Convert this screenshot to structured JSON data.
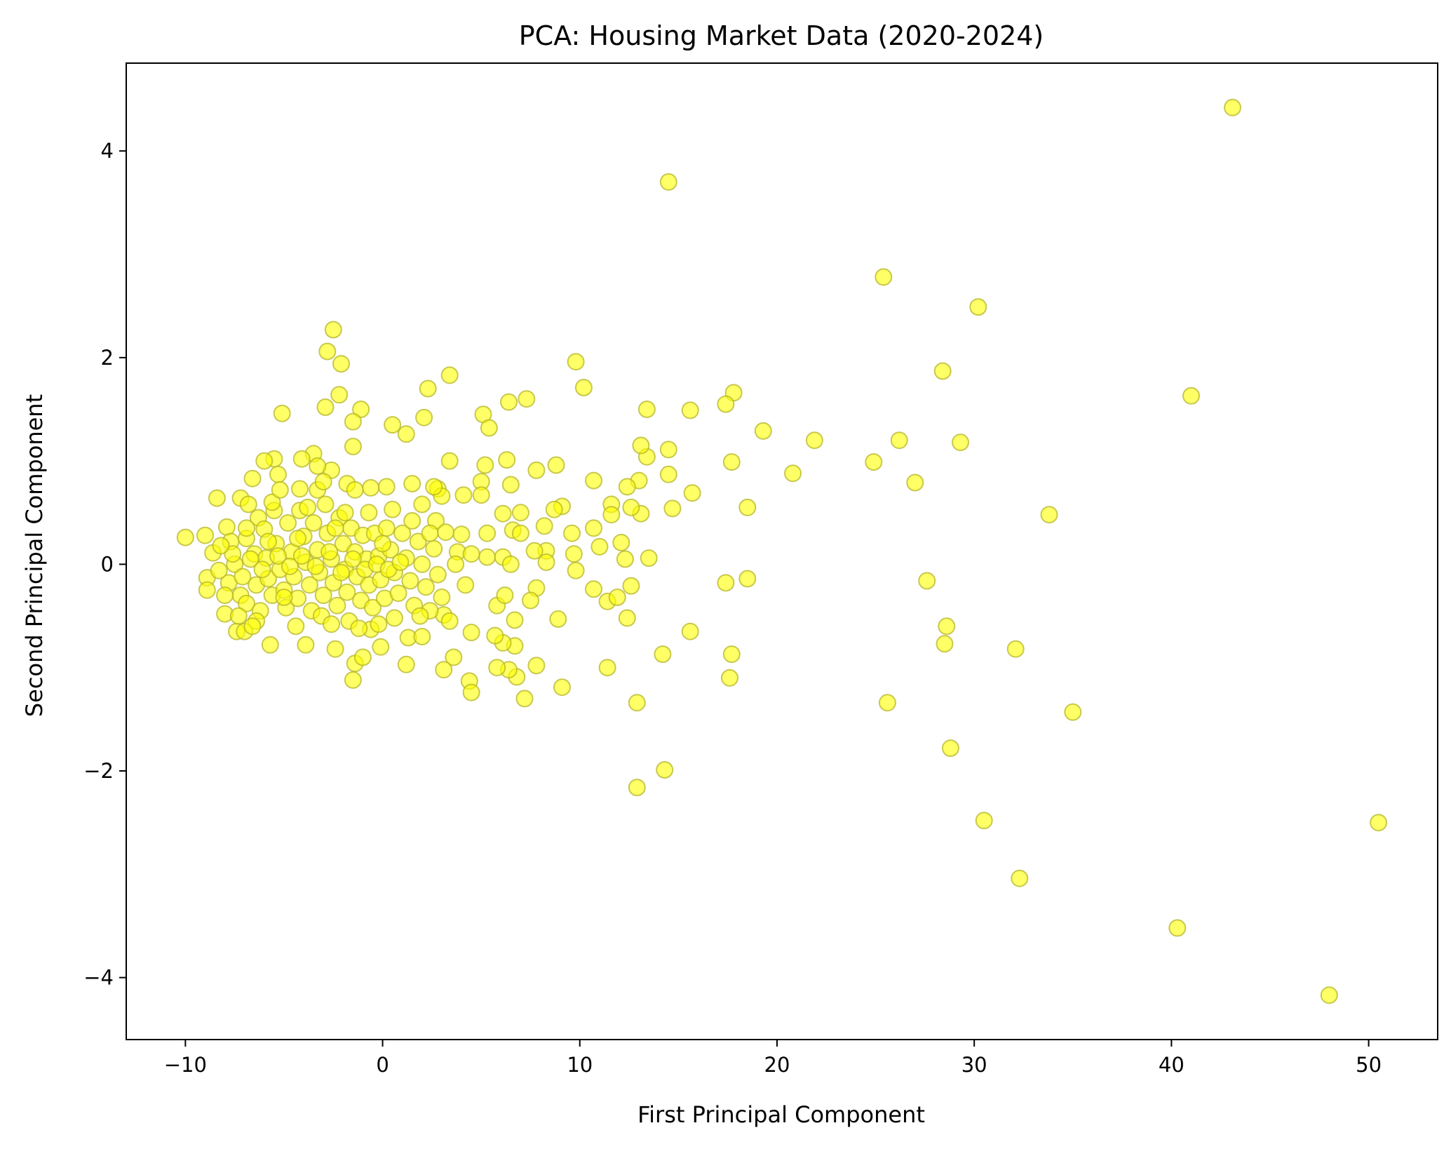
{
  "chart_data": {
    "type": "scatter",
    "title": "PCA: Housing Market Data (2020-2024)",
    "xlabel": "First Principal Component",
    "ylabel": "Second Principal Component",
    "xlim": [
      -13,
      53.5
    ],
    "ylim": [
      -4.6,
      4.85
    ],
    "xticks": [
      -10,
      0,
      10,
      20,
      30,
      40,
      50
    ],
    "xtick_labels": [
      "−10",
      "0",
      "10",
      "20",
      "30",
      "40",
      "50"
    ],
    "yticks": [
      -4,
      -2,
      0,
      2,
      4
    ],
    "ytick_labels": [
      "−4",
      "−2",
      "0",
      "2",
      "4"
    ],
    "grid": false,
    "legend": "none",
    "series": [
      {
        "marker_color": "#ffff00",
        "marker_edge_color": "#b5b52a",
        "opacity": 0.6,
        "points": [
          [
            43.1,
            4.42
          ],
          [
            14.5,
            3.7
          ],
          [
            25.4,
            2.78
          ],
          [
            30.2,
            2.49
          ],
          [
            41.0,
            1.63
          ],
          [
            28.4,
            1.87
          ],
          [
            29.3,
            1.18
          ],
          [
            26.2,
            1.2
          ],
          [
            24.9,
            0.99
          ],
          [
            27.0,
            0.79
          ],
          [
            33.8,
            0.48
          ],
          [
            27.6,
            -0.16
          ],
          [
            28.6,
            -0.6
          ],
          [
            28.5,
            -0.77
          ],
          [
            32.1,
            -0.82
          ],
          [
            25.6,
            -1.34
          ],
          [
            35.0,
            -1.43
          ],
          [
            28.8,
            -1.78
          ],
          [
            30.5,
            -2.48
          ],
          [
            50.5,
            -2.5
          ],
          [
            32.3,
            -3.04
          ],
          [
            40.3,
            -3.52
          ],
          [
            48.0,
            -4.17
          ],
          [
            21.9,
            1.2
          ],
          [
            19.3,
            1.29
          ],
          [
            20.8,
            0.88
          ],
          [
            17.8,
            1.66
          ],
          [
            17.4,
            1.55
          ],
          [
            17.7,
            0.99
          ],
          [
            18.5,
            0.55
          ],
          [
            18.5,
            -0.14
          ],
          [
            17.4,
            -0.18
          ],
          [
            17.7,
            -0.87
          ],
          [
            17.6,
            -1.1
          ],
          [
            15.6,
            1.49
          ],
          [
            15.7,
            0.69
          ],
          [
            14.7,
            0.54
          ],
          [
            14.5,
            0.87
          ],
          [
            14.5,
            1.11
          ],
          [
            15.6,
            -0.65
          ],
          [
            14.2,
            -0.87
          ],
          [
            14.3,
            -1.99
          ],
          [
            13.4,
            1.5
          ],
          [
            13.4,
            1.04
          ],
          [
            13.1,
            1.15
          ],
          [
            13.0,
            0.81
          ],
          [
            13.1,
            0.49
          ],
          [
            12.6,
            0.55
          ],
          [
            12.4,
            0.75
          ],
          [
            13.5,
            0.06
          ],
          [
            12.3,
            0.05
          ],
          [
            12.6,
            -0.21
          ],
          [
            12.4,
            -0.52
          ],
          [
            12.9,
            -1.34
          ],
          [
            12.9,
            -2.16
          ],
          [
            9.8,
            1.96
          ],
          [
            10.2,
            1.71
          ],
          [
            11.6,
            0.58
          ],
          [
            11.6,
            0.48
          ],
          [
            10.7,
            0.81
          ],
          [
            10.7,
            0.35
          ],
          [
            11.0,
            0.17
          ],
          [
            12.1,
            0.21
          ],
          [
            9.7,
            0.1
          ],
          [
            9.8,
            -0.06
          ],
          [
            10.7,
            -0.24
          ],
          [
            11.4,
            -0.36
          ],
          [
            11.9,
            -0.32
          ],
          [
            11.4,
            -1.0
          ],
          [
            7.3,
            1.6
          ],
          [
            6.4,
            1.57
          ],
          [
            8.8,
            0.96
          ],
          [
            7.8,
            0.91
          ],
          [
            9.1,
            0.56
          ],
          [
            8.7,
            0.53
          ],
          [
            8.2,
            0.37
          ],
          [
            7.0,
            0.5
          ],
          [
            8.3,
            0.13
          ],
          [
            7.7,
            0.13
          ],
          [
            8.3,
            0.02
          ],
          [
            9.6,
            0.3
          ],
          [
            7.8,
            -0.23
          ],
          [
            7.5,
            -0.35
          ],
          [
            8.9,
            -0.53
          ],
          [
            7.8,
            -0.98
          ],
          [
            9.1,
            -1.19
          ],
          [
            7.2,
            -1.3
          ],
          [
            6.8,
            -1.09
          ],
          [
            6.4,
            -1.02
          ],
          [
            5.8,
            -1.0
          ],
          [
            5.1,
            1.45
          ],
          [
            5.4,
            1.32
          ],
          [
            6.3,
            1.01
          ],
          [
            5.2,
            0.96
          ],
          [
            6.5,
            0.77
          ],
          [
            5.0,
            0.8
          ],
          [
            5.0,
            0.67
          ],
          [
            6.1,
            0.49
          ],
          [
            5.3,
            0.3
          ],
          [
            6.6,
            0.33
          ],
          [
            5.3,
            0.07
          ],
          [
            6.1,
            0.07
          ],
          [
            6.7,
            -0.54
          ],
          [
            6.7,
            -0.79
          ],
          [
            6.1,
            -0.76
          ],
          [
            5.7,
            -0.69
          ],
          [
            4.4,
            -1.13
          ],
          [
            4.5,
            -1.24
          ],
          [
            3.4,
            1.83
          ],
          [
            3.4,
            1.0
          ],
          [
            2.3,
            1.7
          ],
          [
            2.1,
            1.42
          ],
          [
            4.1,
            0.67
          ],
          [
            2.8,
            0.73
          ],
          [
            3.0,
            0.66
          ],
          [
            2.7,
            0.42
          ],
          [
            3.2,
            0.31
          ],
          [
            4.0,
            0.29
          ],
          [
            3.8,
            0.12
          ],
          [
            3.1,
            -0.49
          ],
          [
            4.5,
            -0.66
          ],
          [
            3.6,
            -0.9
          ],
          [
            3.1,
            -1.02
          ],
          [
            1.2,
            1.26
          ],
          [
            0.5,
            1.35
          ],
          [
            1.5,
            0.78
          ],
          [
            0.2,
            0.75
          ],
          [
            2.6,
            0.75
          ],
          [
            2.0,
            0.58
          ],
          [
            0.5,
            0.53
          ],
          [
            1.2,
            -0.97
          ],
          [
            -1.1,
            1.5
          ],
          [
            -1.5,
            1.38
          ],
          [
            -1.5,
            1.14
          ],
          [
            -2.5,
            2.27
          ],
          [
            -2.8,
            2.06
          ],
          [
            -2.1,
            1.94
          ],
          [
            -2.2,
            1.64
          ],
          [
            -2.9,
            1.52
          ],
          [
            -5.1,
            1.46
          ],
          [
            -3.5,
            1.07
          ],
          [
            -4.1,
            1.02
          ],
          [
            -5.5,
            1.02
          ],
          [
            -2.6,
            0.91
          ],
          [
            -3.3,
            0.95
          ],
          [
            -5.3,
            0.87
          ],
          [
            -6.0,
            1.0
          ],
          [
            -6.6,
            0.83
          ],
          [
            -4.2,
            0.73
          ],
          [
            -3.3,
            0.72
          ],
          [
            -1.8,
            0.78
          ],
          [
            -1.4,
            0.72
          ],
          [
            -0.6,
            0.74
          ],
          [
            -8.4,
            0.64
          ],
          [
            -7.2,
            0.64
          ],
          [
            -9.0,
            0.28
          ],
          [
            -10.0,
            0.26
          ],
          [
            -8.6,
            0.11
          ],
          [
            -8.9,
            -0.13
          ],
          [
            -8.9,
            -0.25
          ],
          [
            -8.0,
            -0.48
          ],
          [
            -7.4,
            -0.65
          ],
          [
            -7.0,
            -0.65
          ],
          [
            -5.7,
            -0.78
          ],
          [
            -3.9,
            -0.78
          ],
          [
            -2.4,
            -0.82
          ],
          [
            -1.4,
            -0.96
          ],
          [
            -1.5,
            -1.12
          ],
          [
            -1.0,
            -0.9
          ],
          [
            -0.1,
            -0.8
          ],
          [
            1.3,
            -0.71
          ],
          [
            2.0,
            -0.7
          ],
          [
            -0.6,
            -0.63
          ],
          [
            -7.9,
            0.36
          ],
          [
            -7.7,
            0.22
          ],
          [
            -7.5,
            0.0
          ],
          [
            -7.8,
            -0.18
          ],
          [
            -7.2,
            -0.3
          ],
          [
            -6.9,
            -0.38
          ],
          [
            -6.8,
            0.58
          ],
          [
            -6.9,
            0.25
          ],
          [
            -6.5,
            0.1
          ],
          [
            -6.4,
            -0.2
          ],
          [
            -6.2,
            -0.45
          ],
          [
            -6.3,
            0.45
          ],
          [
            -6.0,
            0.34
          ],
          [
            -5.9,
            0.06
          ],
          [
            -5.8,
            -0.14
          ],
          [
            -5.6,
            -0.3
          ],
          [
            -5.5,
            0.52
          ],
          [
            -5.4,
            0.2
          ],
          [
            -5.2,
            -0.05
          ],
          [
            -5.0,
            -0.25
          ],
          [
            -4.9,
            -0.42
          ],
          [
            -4.8,
            0.4
          ],
          [
            -4.6,
            0.12
          ],
          [
            -4.5,
            -0.12
          ],
          [
            -4.3,
            -0.33
          ],
          [
            -4.2,
            0.52
          ],
          [
            -4.0,
            0.27
          ],
          [
            -3.9,
            0.02
          ],
          [
            -3.7,
            -0.2
          ],
          [
            -3.6,
            -0.45
          ],
          [
            -3.5,
            0.4
          ],
          [
            -3.3,
            0.14
          ],
          [
            -3.2,
            -0.08
          ],
          [
            -3.0,
            -0.3
          ],
          [
            -2.9,
            0.58
          ],
          [
            -2.8,
            0.3
          ],
          [
            -2.6,
            0.05
          ],
          [
            -2.5,
            -0.18
          ],
          [
            -2.3,
            -0.4
          ],
          [
            -2.2,
            0.45
          ],
          [
            -2.0,
            0.2
          ],
          [
            -1.9,
            -0.05
          ],
          [
            -1.8,
            -0.27
          ],
          [
            -1.7,
            -0.55
          ],
          [
            -1.6,
            0.35
          ],
          [
            -1.4,
            0.12
          ],
          [
            -1.3,
            -0.12
          ],
          [
            -1.1,
            -0.35
          ],
          [
            -1.0,
            0.28
          ],
          [
            -0.8,
            0.05
          ],
          [
            -0.7,
            -0.2
          ],
          [
            -0.5,
            -0.42
          ],
          [
            -0.4,
            0.3
          ],
          [
            -0.2,
            0.08
          ],
          [
            -0.1,
            -0.15
          ],
          [
            0.1,
            -0.33
          ],
          [
            0.2,
            0.35
          ],
          [
            0.4,
            0.14
          ],
          [
            0.6,
            -0.08
          ],
          [
            0.8,
            -0.28
          ],
          [
            1.0,
            0.3
          ],
          [
            1.2,
            0.06
          ],
          [
            1.4,
            -0.16
          ],
          [
            1.6,
            -0.4
          ],
          [
            1.8,
            0.22
          ],
          [
            2.0,
            0.0
          ],
          [
            2.2,
            -0.22
          ],
          [
            2.4,
            -0.45
          ],
          [
            2.6,
            0.15
          ],
          [
            2.8,
            -0.1
          ],
          [
            3.0,
            -0.32
          ],
          [
            -7.6,
            0.1
          ],
          [
            -7.1,
            -0.12
          ],
          [
            -6.7,
            0.05
          ],
          [
            -6.1,
            -0.05
          ],
          [
            -5.3,
            0.08
          ],
          [
            -4.7,
            -0.02
          ],
          [
            -4.1,
            0.08
          ],
          [
            -3.4,
            -0.02
          ],
          [
            -2.7,
            0.12
          ],
          [
            -2.1,
            -0.08
          ],
          [
            -1.5,
            0.05
          ],
          [
            -0.9,
            -0.05
          ],
          [
            -0.3,
            0.0
          ],
          [
            0.3,
            -0.05
          ],
          [
            0.9,
            0.02
          ],
          [
            -5.8,
            0.22
          ],
          [
            -5.0,
            -0.32
          ],
          [
            -4.3,
            0.25
          ],
          [
            -3.1,
            -0.5
          ],
          [
            -2.4,
            0.35
          ],
          [
            -1.2,
            -0.62
          ],
          [
            0.0,
            0.2
          ],
          [
            1.5,
            0.42
          ],
          [
            2.4,
            0.3
          ],
          [
            3.4,
            -0.55
          ],
          [
            3.7,
            0.0
          ],
          [
            4.2,
            -0.2
          ],
          [
            4.5,
            0.1
          ],
          [
            5.8,
            -0.4
          ],
          [
            6.5,
            0.0
          ],
          [
            7.0,
            0.3
          ],
          [
            6.2,
            -0.3
          ],
          [
            -6.9,
            0.35
          ],
          [
            -6.4,
            -0.55
          ],
          [
            -5.6,
            0.6
          ],
          [
            -4.4,
            -0.6
          ],
          [
            -3.8,
            0.55
          ],
          [
            -2.6,
            -0.58
          ],
          [
            -1.9,
            0.5
          ],
          [
            -0.7,
            0.5
          ],
          [
            0.6,
            -0.52
          ],
          [
            1.9,
            -0.5
          ],
          [
            -8.2,
            0.18
          ],
          [
            -8.3,
            -0.06
          ],
          [
            -8.0,
            -0.3
          ],
          [
            -7.3,
            -0.5
          ],
          [
            -6.6,
            -0.6
          ],
          [
            -5.2,
            0.72
          ],
          [
            -3.0,
            0.8
          ],
          [
            -0.2,
            -0.58
          ]
        ]
      }
    ]
  }
}
